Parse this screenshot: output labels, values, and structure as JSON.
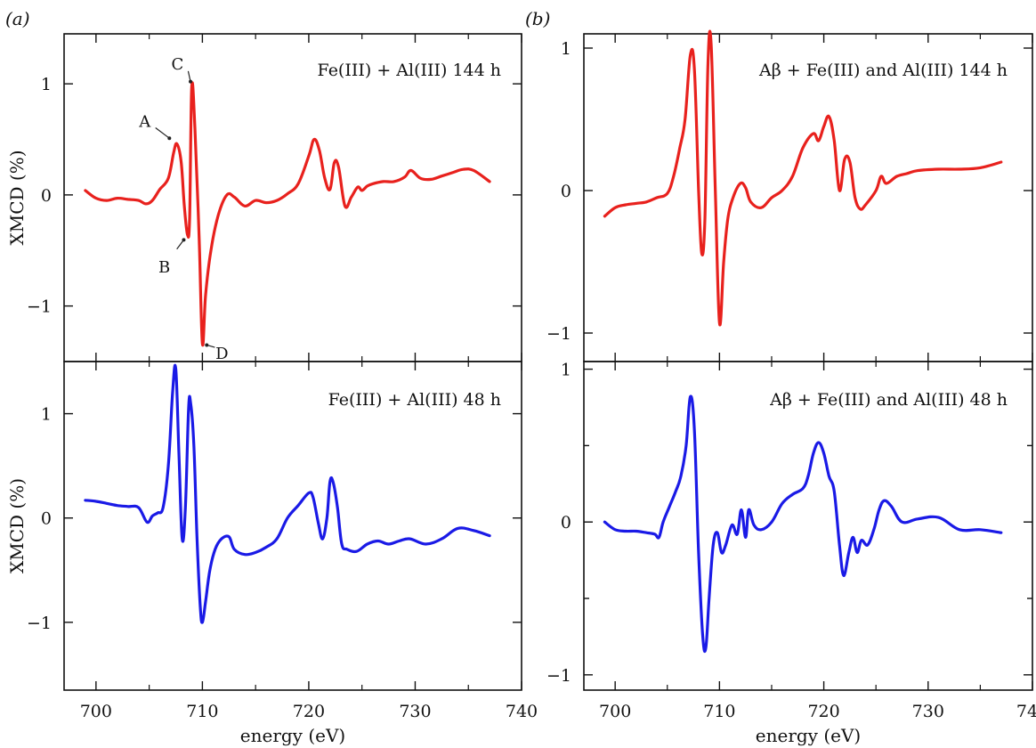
{
  "panel_letters": {
    "a": "(a)",
    "b": "(b)"
  },
  "colors": {
    "red": "#e8211d",
    "blue": "#1a1ae6",
    "axis": "#111111"
  },
  "chart_data": [
    {
      "panel": "a-top",
      "type": "line",
      "title": "",
      "annotation": "Fe(III) + Al(III) 144 h",
      "xlabel": "",
      "ylabel": "XMCD (%)",
      "xlim": [
        697,
        740
      ],
      "ylim": [
        -1.5,
        1.45
      ],
      "xticks": [
        700,
        710,
        720,
        730,
        740
      ],
      "yticks": [
        -1,
        0,
        1
      ],
      "ytick_labels": [
        "−1",
        "0",
        "1"
      ],
      "grid": false,
      "color": "red",
      "point_labels": [
        {
          "text": "A",
          "x": 707.6,
          "y": 0.46
        },
        {
          "text": "B",
          "x": 708.6,
          "y": -0.36
        },
        {
          "text": "C",
          "x": 709.0,
          "y": 0.97
        },
        {
          "text": "D",
          "x": 710.0,
          "y": -1.34
        }
      ],
      "x": [
        699,
        700,
        701,
        702,
        703,
        704,
        704.7,
        705.3,
        706,
        706.8,
        707.3,
        707.6,
        708,
        708.3,
        708.6,
        708.8,
        709.0,
        709.3,
        709.7,
        710.0,
        710.3,
        710.8,
        711.5,
        712.3,
        713,
        714,
        715,
        716,
        717,
        718,
        719,
        720,
        720.5,
        721,
        721.5,
        722,
        722.4,
        722.8,
        723.4,
        724,
        724.6,
        725,
        725.5,
        726,
        727,
        728,
        729,
        729.6,
        730.5,
        731.5,
        732.5,
        733.5,
        734.5,
        735.5,
        737
      ],
      "y": [
        0.04,
        -0.03,
        -0.05,
        -0.03,
        -0.04,
        -0.05,
        -0.08,
        -0.05,
        0.05,
        0.15,
        0.38,
        0.46,
        0.3,
        -0.1,
        -0.36,
        -0.2,
        0.97,
        0.6,
        -0.4,
        -1.34,
        -0.9,
        -0.5,
        -0.18,
        0.0,
        -0.02,
        -0.1,
        -0.05,
        -0.07,
        -0.05,
        0.01,
        0.1,
        0.35,
        0.5,
        0.4,
        0.15,
        0.05,
        0.29,
        0.25,
        -0.1,
        -0.02,
        0.07,
        0.04,
        0.08,
        0.1,
        0.12,
        0.12,
        0.16,
        0.22,
        0.15,
        0.14,
        0.17,
        0.2,
        0.23,
        0.22,
        0.12
      ]
    },
    {
      "panel": "a-bottom",
      "type": "line",
      "title": "",
      "annotation": "Fe(III) + Al(III) 48 h",
      "xlabel": "energy (eV)",
      "ylabel": "XMCD (%)",
      "xlim": [
        697,
        740
      ],
      "ylim": [
        -1.65,
        1.5
      ],
      "xticks": [
        700,
        710,
        720,
        730,
        740
      ],
      "yticks": [
        -1,
        0,
        1
      ],
      "ytick_labels": [
        "−1",
        "0",
        "1"
      ],
      "grid": false,
      "color": "blue",
      "x": [
        699,
        700,
        701,
        702,
        703,
        704,
        704.8,
        705.3,
        705.8,
        706.3,
        706.8,
        707.2,
        707.5,
        707.8,
        708.1,
        708.4,
        708.7,
        708.9,
        709.2,
        709.5,
        709.8,
        710.0,
        710.3,
        710.7,
        711.2,
        711.8,
        712.5,
        713,
        714,
        715,
        716,
        717,
        718,
        719,
        720,
        720.4,
        720.9,
        721.3,
        721.7,
        722.0,
        722.3,
        722.7,
        723.1,
        723.6,
        724.5,
        725.5,
        726.5,
        727.5,
        728.5,
        729.5,
        731,
        732.5,
        734,
        735.5,
        737
      ],
      "y": [
        0.17,
        0.16,
        0.14,
        0.12,
        0.11,
        0.1,
        -0.04,
        0.02,
        0.05,
        0.1,
        0.5,
        1.2,
        1.43,
        0.6,
        -0.2,
        0.1,
        1.05,
        1.1,
        0.7,
        -0.2,
        -0.85,
        -1.0,
        -0.8,
        -0.5,
        -0.3,
        -0.2,
        -0.18,
        -0.3,
        -0.35,
        -0.33,
        -0.28,
        -0.2,
        0.0,
        0.12,
        0.24,
        0.2,
        -0.05,
        -0.2,
        0.0,
        0.35,
        0.34,
        0.1,
        -0.25,
        -0.3,
        -0.32,
        -0.25,
        -0.22,
        -0.25,
        -0.22,
        -0.2,
        -0.25,
        -0.2,
        -0.1,
        -0.12,
        -0.17
      ]
    },
    {
      "panel": "b-top",
      "type": "line",
      "title": "",
      "annotation": "Aβ + Fe(III) and Al(III) 144 h",
      "xlabel": "",
      "ylabel": "",
      "xlim": [
        697,
        740
      ],
      "ylim": [
        -1.2,
        1.1
      ],
      "xticks": [
        700,
        710,
        720,
        730,
        740
      ],
      "yticks": [
        -1,
        0,
        1
      ],
      "ytick_labels": [
        "−1",
        "0",
        "1"
      ],
      "grid": false,
      "color": "red",
      "x": [
        699,
        700,
        701,
        702,
        703,
        704,
        705,
        705.6,
        706.2,
        706.7,
        707.2,
        707.6,
        708.0,
        708.3,
        708.6,
        708.9,
        709.2,
        709.6,
        710.0,
        710.4,
        710.8,
        711.3,
        712,
        712.5,
        713,
        714,
        715,
        716,
        717,
        718,
        719,
        719.5,
        720,
        720.5,
        721,
        721.5,
        722,
        722.5,
        723,
        723.5,
        724,
        725,
        725.5,
        726,
        727,
        728,
        729,
        731,
        733,
        735,
        737
      ],
      "y": [
        -0.18,
        -0.12,
        -0.1,
        -0.09,
        -0.08,
        -0.05,
        -0.02,
        0.1,
        0.3,
        0.5,
        0.95,
        0.85,
        0.0,
        -0.44,
        -0.2,
        0.9,
        1.03,
        0.0,
        -0.93,
        -0.5,
        -0.2,
        -0.05,
        0.05,
        0.02,
        -0.08,
        -0.12,
        -0.05,
        0.0,
        0.1,
        0.3,
        0.4,
        0.35,
        0.45,
        0.52,
        0.35,
        0.0,
        0.22,
        0.2,
        -0.05,
        -0.13,
        -0.1,
        0.0,
        0.1,
        0.05,
        0.1,
        0.12,
        0.14,
        0.15,
        0.15,
        0.16,
        0.2
      ]
    },
    {
      "panel": "b-bottom",
      "type": "line",
      "title": "",
      "annotation": "Aβ + Fe(III) and Al(III) 48 h",
      "xlabel": "energy (eV)",
      "ylabel": "",
      "xlim": [
        697,
        740
      ],
      "ylim": [
        -1.1,
        1.05
      ],
      "xticks": [
        700,
        710,
        720,
        730,
        740
      ],
      "yticks": [
        -1,
        -0.5,
        0,
        0.5,
        1
      ],
      "ytick_labels": [
        "−1",
        "",
        "0",
        "",
        "1"
      ],
      "grid": false,
      "color": "blue",
      "x": [
        699,
        700,
        701,
        702,
        703,
        703.8,
        704.2,
        704.6,
        705.2,
        705.8,
        706.3,
        706.8,
        707.2,
        707.6,
        708.0,
        708.4,
        708.7,
        709.0,
        709.4,
        709.8,
        710.2,
        710.6,
        711.2,
        711.7,
        712.1,
        712.5,
        712.8,
        713.3,
        714,
        715,
        716,
        717,
        718,
        718.5,
        719,
        719.5,
        720,
        720.5,
        721,
        721.5,
        721.9,
        722.4,
        722.8,
        723.2,
        723.6,
        724.2,
        724.8,
        725.3,
        725.8,
        726.5,
        727.5,
        729,
        731,
        733,
        735,
        737
      ],
      "y": [
        0.0,
        -0.05,
        -0.06,
        -0.06,
        -0.07,
        -0.08,
        -0.1,
        0.0,
        0.1,
        0.2,
        0.3,
        0.5,
        0.82,
        0.6,
        -0.2,
        -0.75,
        -0.82,
        -0.5,
        -0.15,
        -0.07,
        -0.2,
        -0.15,
        -0.02,
        -0.08,
        0.08,
        -0.1,
        0.08,
        -0.02,
        -0.05,
        0.0,
        0.12,
        0.18,
        0.22,
        0.3,
        0.45,
        0.52,
        0.45,
        0.3,
        0.2,
        -0.15,
        -0.35,
        -0.2,
        -0.1,
        -0.2,
        -0.12,
        -0.15,
        -0.05,
        0.08,
        0.14,
        0.1,
        0.0,
        0.02,
        0.03,
        -0.05,
        -0.05,
        -0.07
      ]
    }
  ]
}
